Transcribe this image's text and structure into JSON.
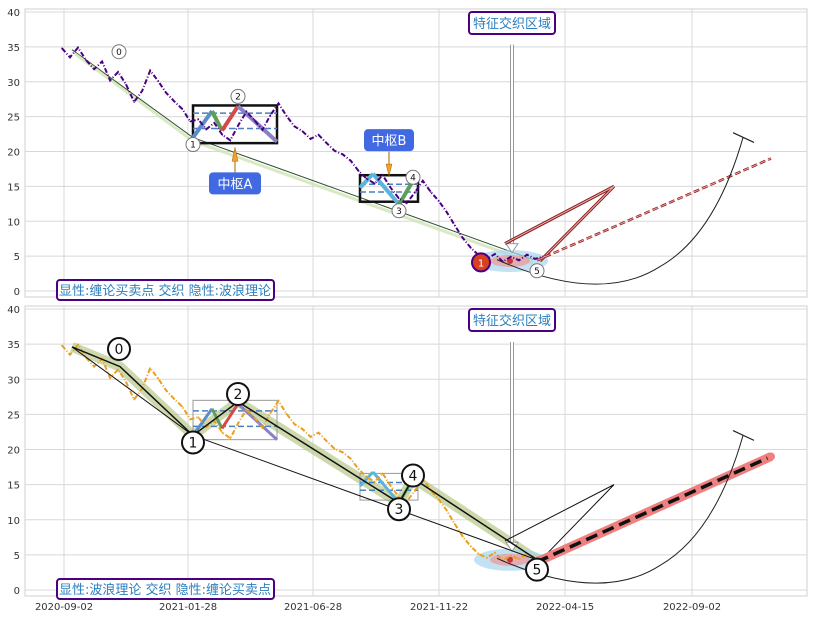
{
  "chart_data": [
    {
      "type": "line",
      "panel": "top",
      "title": "",
      "xlabel": "",
      "ylabel": "",
      "ylim": [
        0,
        40
      ],
      "yticks": [
        0,
        5,
        10,
        15,
        20,
        25,
        30,
        35,
        40
      ],
      "xticks": [],
      "grid": true,
      "annotations": {
        "zone_title": "特征交织区域",
        "zhongshu_a": "中枢A",
        "zhongshu_b": "中枢B",
        "footer": "显性:缠论买卖点 交织 隐性:波浪理论",
        "buy_point_label": "1",
        "wave_labels": [
          "0",
          "1",
          "2",
          "3",
          "4",
          "5"
        ]
      },
      "colors": {
        "price": "#4b0082",
        "accent": "#2a7fbf",
        "label_box": "#4169e1",
        "projection": "#8b1a1a"
      },
      "series": [
        {
          "values": [
            [
              0,
              34.8
            ],
            [
              1,
              33.5
            ],
            [
              2,
              34.9
            ],
            [
              3,
              33.1
            ],
            [
              4,
              31.8
            ],
            [
              5,
              32.9
            ],
            [
              6,
              30.2
            ],
            [
              7,
              31.4
            ],
            [
              8,
              29.6
            ],
            [
              9,
              27.1
            ],
            [
              10,
              28.7
            ],
            [
              11,
              31.6
            ],
            [
              12,
              30.1
            ],
            [
              13,
              28.4
            ],
            [
              14,
              27.2
            ],
            [
              15,
              26.1
            ],
            [
              16,
              24.3
            ],
            [
              17,
              24.6
            ],
            [
              18,
              23.2
            ],
            [
              19,
              24.1
            ],
            [
              20,
              22.4
            ],
            [
              21,
              21.6
            ],
            [
              22,
              23.8
            ],
            [
              23,
              25.7
            ],
            [
              24,
              24.5
            ],
            [
              25,
              23.1
            ],
            [
              26,
              25.2
            ],
            [
              27,
              26.9
            ],
            [
              28,
              25.1
            ],
            [
              29,
              23.6
            ],
            [
              30,
              22.9
            ],
            [
              31,
              21.8
            ],
            [
              32,
              22.4
            ],
            [
              33,
              21.2
            ],
            [
              34,
              20.1
            ],
            [
              35,
              19.6
            ],
            [
              36,
              18.7
            ],
            [
              37,
              17.2
            ],
            [
              38,
              16.1
            ],
            [
              39,
              15.4
            ],
            [
              40,
              16.6
            ],
            [
              41,
              14.8
            ],
            [
              42,
              13.3
            ],
            [
              43,
              12.6
            ],
            [
              44,
              14.1
            ],
            [
              45,
              15.8
            ],
            [
              46,
              14.2
            ],
            [
              47,
              12.9
            ],
            [
              48,
              11.3
            ],
            [
              49,
              9.4
            ],
            [
              50,
              7.6
            ],
            [
              51,
              6.2
            ],
            [
              52,
              5.1
            ],
            [
              53,
              4.6
            ],
            [
              54,
              5.3
            ],
            [
              55,
              4.2
            ],
            [
              56,
              4.9
            ],
            [
              57,
              4.4
            ],
            [
              58,
              5.2
            ],
            [
              59,
              4.6
            ],
            [
              60,
              4.9
            ]
          ]
        }
      ]
    },
    {
      "type": "line",
      "panel": "bottom",
      "title": "",
      "xlabel": "",
      "ylabel": "",
      "ylim": [
        0,
        40
      ],
      "yticks": [
        0,
        5,
        10,
        15,
        20,
        25,
        30,
        35,
        40
      ],
      "xticks": [
        "2020-09-02",
        "2021-01-28",
        "2021-06-28",
        "2021-11-22",
        "2022-04-15",
        "2022-09-02"
      ],
      "grid": true,
      "annotations": {
        "zone_title": "特征交织区域",
        "footer": "显性:波浪理论 交织 隐性:缠论买卖点",
        "wave_labels": [
          "0",
          "1",
          "2",
          "3",
          "4",
          "5"
        ]
      },
      "colors": {
        "price": "#e8a020",
        "accent": "#2a7fbf",
        "projection": "#f08080"
      },
      "series": [
        {
          "values": [
            [
              0,
              34.8
            ],
            [
              1,
              33.5
            ],
            [
              2,
              34.9
            ],
            [
              3,
              33.1
            ],
            [
              4,
              31.8
            ],
            [
              5,
              32.9
            ],
            [
              6,
              30.2
            ],
            [
              7,
              31.4
            ],
            [
              8,
              29.6
            ],
            [
              9,
              27.1
            ],
            [
              10,
              28.7
            ],
            [
              11,
              31.6
            ],
            [
              12,
              30.1
            ],
            [
              13,
              28.4
            ],
            [
              14,
              27.2
            ],
            [
              15,
              26.1
            ],
            [
              16,
              24.3
            ],
            [
              17,
              24.6
            ],
            [
              18,
              23.2
            ],
            [
              19,
              24.1
            ],
            [
              20,
              22.4
            ],
            [
              21,
              21.6
            ],
            [
              22,
              23.8
            ],
            [
              23,
              25.7
            ],
            [
              24,
              24.5
            ],
            [
              25,
              23.1
            ],
            [
              26,
              25.2
            ],
            [
              27,
              26.9
            ],
            [
              28,
              25.1
            ],
            [
              29,
              23.6
            ],
            [
              30,
              22.9
            ],
            [
              31,
              21.8
            ],
            [
              32,
              22.4
            ],
            [
              33,
              21.2
            ],
            [
              34,
              20.1
            ],
            [
              35,
              19.6
            ],
            [
              36,
              18.7
            ],
            [
              37,
              17.2
            ],
            [
              38,
              16.1
            ],
            [
              39,
              15.4
            ],
            [
              40,
              16.6
            ],
            [
              41,
              14.8
            ],
            [
              42,
              13.3
            ],
            [
              43,
              12.6
            ],
            [
              44,
              14.1
            ],
            [
              45,
              15.8
            ],
            [
              46,
              14.2
            ],
            [
              47,
              12.9
            ],
            [
              48,
              11.3
            ],
            [
              49,
              9.4
            ],
            [
              50,
              7.6
            ],
            [
              51,
              6.2
            ],
            [
              52,
              5.1
            ],
            [
              53,
              4.6
            ],
            [
              54,
              5.3
            ],
            [
              55,
              4.2
            ],
            [
              56,
              4.9
            ],
            [
              57,
              4.4
            ],
            [
              58,
              5.2
            ],
            [
              59,
              4.6
            ],
            [
              60,
              4.9
            ]
          ]
        }
      ]
    }
  ]
}
